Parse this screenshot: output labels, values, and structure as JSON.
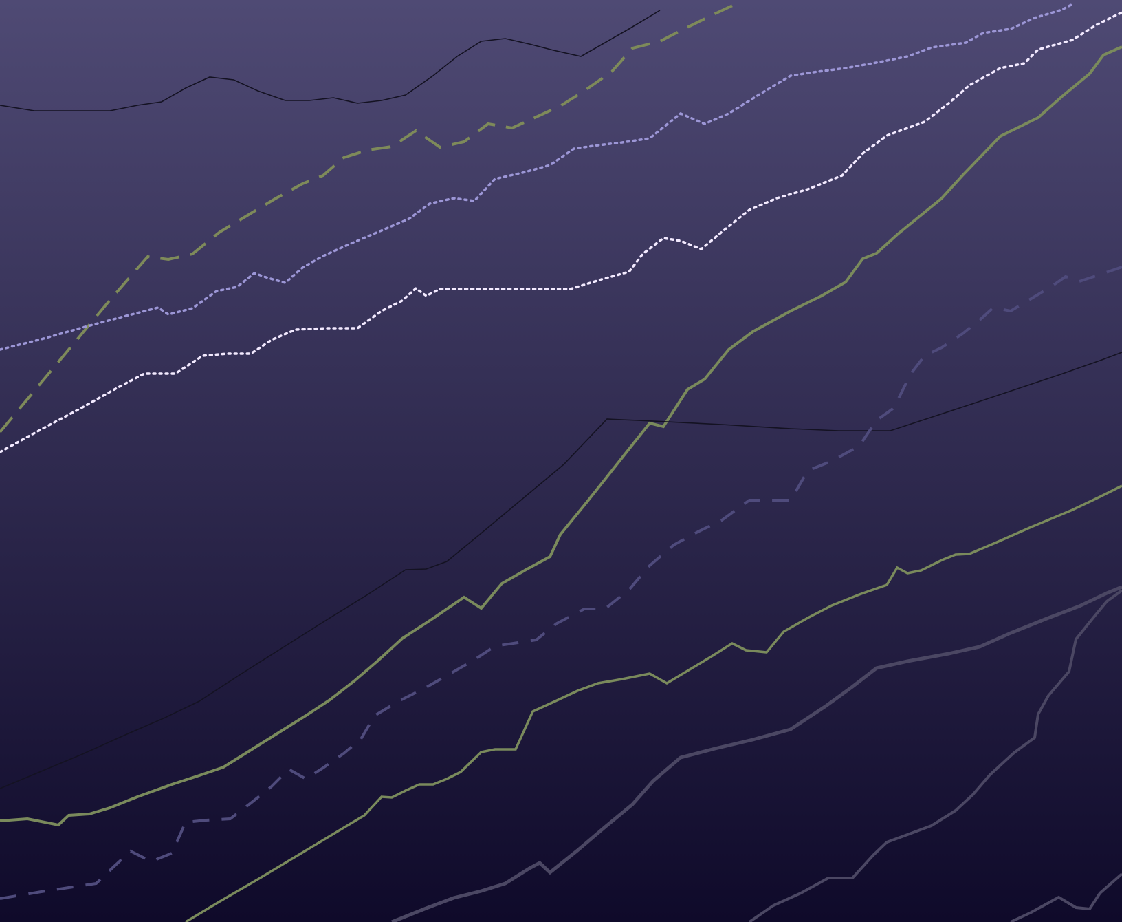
{
  "colors": {
    "accent_bar": "#7ea531",
    "background_top": "#4f4a74",
    "background_bottom": "#0f0a2a",
    "olive_line": "#7a8a5c",
    "olive_dash": "#7e8a5a",
    "lavender_dot": "#9c96d6",
    "white_dot": "#f3eaff",
    "dark_line": "#141222",
    "slate_dash": "#4f4b7c",
    "gray_line": "#4b4763"
  }
}
